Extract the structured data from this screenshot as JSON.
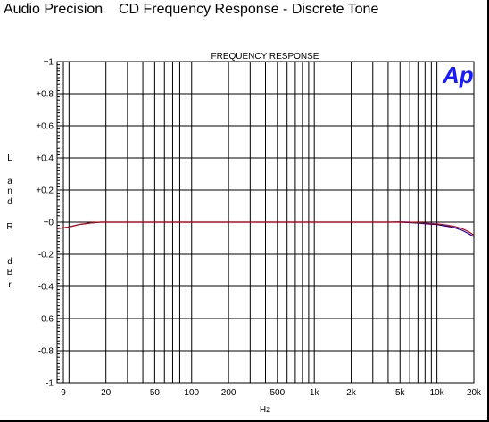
{
  "window": {
    "title": "Audio Precision    CD Frequency Response - Discrete Tone"
  },
  "logo": {
    "text": "Ap",
    "color": "#1a1aff"
  },
  "chart_data": {
    "type": "line",
    "title": "FREQUENCY RESPONSE",
    "xlabel": "Hz",
    "ylabel": "L and R dBr",
    "ylabel_letters": [
      "L",
      "a",
      "n",
      "d",
      "R",
      "d",
      "B",
      "r"
    ],
    "x_scale": "log",
    "xlim": [
      8,
      20000
    ],
    "ylim": [
      -1,
      1
    ],
    "grid": true,
    "x_tick_values": [
      9,
      20,
      50,
      100,
      200,
      500,
      1000,
      2000,
      5000,
      10000,
      20000
    ],
    "x_tick_labels": [
      "9",
      "20",
      "50",
      "100",
      "200",
      "500",
      "1k",
      "2k",
      "5k",
      "10k",
      "20k"
    ],
    "y_tick_values": [
      1,
      0.8,
      0.6,
      0.4,
      0.2,
      0,
      -0.2,
      -0.4,
      -0.6,
      -0.8,
      -1
    ],
    "y_tick_labels": [
      "+1",
      "+0.8",
      "+0.6",
      "+0.4",
      "+0.2",
      "+0",
      "-0.2",
      "-0.4",
      "-0.6",
      "-0.8",
      "-1"
    ],
    "series": [
      {
        "color": "#0000cc",
        "points": [
          [
            8,
            -0.04
          ],
          [
            9,
            -0.035
          ],
          [
            10,
            -0.03
          ],
          [
            12,
            -0.015
          ],
          [
            15,
            -0.005
          ],
          [
            18,
            0.0
          ],
          [
            20,
            0.0
          ],
          [
            100,
            0.0
          ],
          [
            1000,
            0.0
          ],
          [
            4000,
            0.0
          ],
          [
            5000,
            0.0
          ],
          [
            6000,
            -0.003
          ],
          [
            7000,
            -0.006
          ],
          [
            8000,
            -0.01
          ],
          [
            10000,
            -0.015
          ],
          [
            12000,
            -0.025
          ],
          [
            14000,
            -0.035
          ],
          [
            16000,
            -0.05
          ],
          [
            18000,
            -0.07
          ],
          [
            20000,
            -0.09
          ]
        ]
      },
      {
        "color": "#cc0000",
        "points": [
          [
            8,
            -0.04
          ],
          [
            9,
            -0.035
          ],
          [
            10,
            -0.03
          ],
          [
            12,
            -0.015
          ],
          [
            15,
            -0.005
          ],
          [
            18,
            0.0
          ],
          [
            20,
            0.0
          ],
          [
            100,
            0.0
          ],
          [
            1000,
            0.0
          ],
          [
            4000,
            0.0
          ],
          [
            5000,
            0.002
          ],
          [
            6000,
            0.0
          ],
          [
            7000,
            -0.003
          ],
          [
            8000,
            -0.006
          ],
          [
            10000,
            -0.01
          ],
          [
            12000,
            -0.018
          ],
          [
            14000,
            -0.027
          ],
          [
            16000,
            -0.04
          ],
          [
            18000,
            -0.058
          ],
          [
            20000,
            -0.08
          ]
        ]
      }
    ]
  }
}
